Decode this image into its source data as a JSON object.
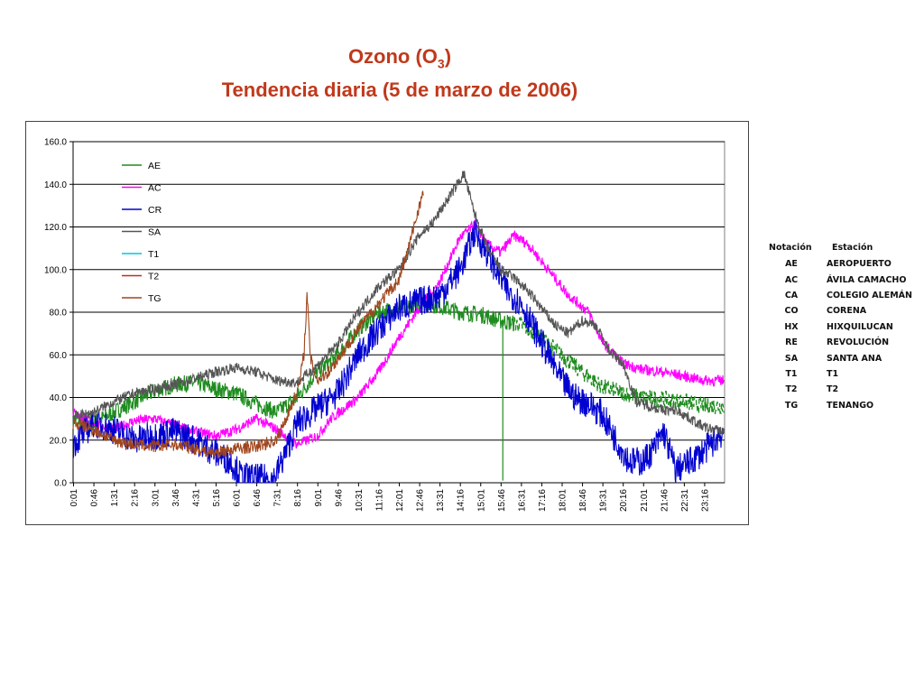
{
  "header": {
    "title_line1_main": "Ozono (O",
    "title_line1_sub": "3",
    "title_line1_end": ")",
    "title_line2": "Tendencia diaria (5 de marzo de 2006)"
  },
  "chart_data": {
    "type": "line",
    "title": "Ozono (O3) Tendencia diaria (5 de marzo de 2006)",
    "xlabel": "",
    "ylabel": "",
    "ylim": [
      0,
      160
    ],
    "yticks": [
      "0.0",
      "20.0",
      "40.0",
      "60.0",
      "80.0",
      "100.0",
      "120.0",
      "140.0",
      "160.0"
    ],
    "xticks": [
      "0:01",
      "0:46",
      "1:31",
      "2:16",
      "3:01",
      "3:46",
      "4:31",
      "5:16",
      "6:01",
      "6:46",
      "7:31",
      "8:16",
      "9:01",
      "9:46",
      "10:31",
      "11:16",
      "12:01",
      "12:46",
      "13:31",
      "14:16",
      "15:01",
      "15:46",
      "16:31",
      "17:16",
      "18:01",
      "18:46",
      "19:31",
      "20:16",
      "21:01",
      "21:46",
      "22:31",
      "23:16"
    ],
    "grid": true,
    "legend_position": "top-left",
    "series": [
      {
        "name": "AE",
        "color": "#1e8c1e",
        "style": "solid",
        "x": [
          0.0,
          0.75,
          1.5,
          2.25,
          3.0,
          3.75,
          4.5,
          5.25,
          6.0,
          6.75,
          7.5,
          8.25,
          9.0,
          9.75,
          10.5,
          11.25,
          12.0,
          12.75,
          13.5,
          14.25,
          15.0,
          15.75,
          16.5,
          17.25,
          18.0,
          18.75,
          19.5,
          20.25,
          21.0,
          21.75,
          22.5,
          23.25,
          23.98
        ],
        "y": [
          30,
          28,
          33,
          38,
          43,
          46,
          47,
          44,
          42,
          37,
          33,
          40,
          52,
          60,
          72,
          80,
          82,
          84,
          83,
          80,
          79,
          76,
          74,
          68,
          60,
          52,
          45,
          42,
          40,
          39,
          38,
          36,
          36
        ],
        "dashed_from_x": 16.3,
        "spike": {
          "x": 15.83,
          "y": 1
        }
      },
      {
        "name": "AC",
        "color": "#ff00ff",
        "style": "solid",
        "x": [
          0.0,
          0.75,
          1.5,
          2.25,
          3.0,
          3.75,
          4.5,
          5.25,
          6.0,
          6.75,
          7.5,
          8.25,
          9.0,
          9.5,
          10.0,
          10.5,
          11.25,
          12.0,
          12.75,
          13.5,
          14.25,
          14.8,
          15.25,
          15.75,
          16.25,
          16.75,
          17.5,
          18.25,
          19.0,
          19.5,
          20.25,
          21.0,
          21.75,
          22.5,
          23.25,
          23.98
        ],
        "y": [
          33,
          28,
          25,
          29,
          30,
          27,
          24,
          22,
          25,
          30,
          25,
          18,
          22,
          30,
          35,
          40,
          52,
          68,
          82,
          94,
          115,
          121,
          112,
          108,
          116,
          112,
          100,
          88,
          80,
          66,
          56,
          53,
          52,
          50,
          48,
          48
        ]
      },
      {
        "name": "CR",
        "color": "#0000d0",
        "style": "solid",
        "x": [
          0.0,
          0.75,
          1.5,
          2.25,
          3.0,
          3.75,
          4.5,
          5.25,
          5.8,
          6.2,
          6.8,
          7.4,
          7.7,
          8.25,
          9.0,
          9.75,
          10.5,
          11.25,
          12.0,
          12.75,
          13.5,
          14.25,
          14.8,
          15.5,
          16.0,
          16.5,
          17.0,
          17.5,
          18.0,
          18.5,
          19.0,
          19.5,
          20.0,
          20.5,
          21.0,
          21.4,
          21.75,
          22.2,
          22.75,
          23.25,
          23.98
        ],
        "y": [
          18,
          28,
          25,
          20,
          22,
          24,
          20,
          14,
          10,
          3,
          2,
          2,
          10,
          28,
          35,
          42,
          60,
          72,
          82,
          85,
          88,
          100,
          118,
          102,
          90,
          84,
          72,
          60,
          48,
          40,
          37,
          32,
          20,
          10,
          10,
          16,
          24,
          6,
          10,
          15,
          24
        ]
      },
      {
        "name": "SA",
        "color": "#555555",
        "style": "solid",
        "x": [
          0.0,
          0.75,
          1.5,
          2.25,
          3.0,
          3.75,
          4.5,
          5.25,
          6.0,
          6.75,
          7.5,
          8.25,
          9.0,
          9.75,
          10.5,
          11.25,
          12.0,
          12.75,
          13.25,
          13.75,
          14.25,
          14.4,
          14.75,
          15.25,
          15.75,
          16.25,
          16.75,
          17.25,
          17.75,
          18.25,
          18.75,
          19.25,
          19.75,
          20.25,
          20.75,
          21.25,
          21.75,
          22.25,
          22.75,
          23.25,
          23.98
        ],
        "y": [
          31,
          33,
          38,
          42,
          44,
          46,
          49,
          52,
          54,
          52,
          48,
          47,
          55,
          65,
          80,
          92,
          100,
          116,
          122,
          132,
          142,
          145,
          128,
          110,
          100,
          96,
          90,
          82,
          74,
          70,
          76,
          74,
          62,
          56,
          38,
          36,
          34,
          34,
          30,
          26,
          24
        ]
      },
      {
        "name": "T1",
        "color": "#00c8d8",
        "style": "solid",
        "x": [],
        "y": []
      },
      {
        "name": "T2",
        "color": "#c8281e",
        "style": "solid",
        "x": [],
        "y": []
      },
      {
        "name": "TG",
        "color": "#a0461e",
        "style": "solid",
        "x": [
          0.0,
          0.75,
          1.5,
          2.25,
          3.0,
          3.75,
          4.5,
          5.25,
          6.0,
          6.75,
          7.5,
          8.0,
          8.3,
          8.5,
          8.62,
          8.75,
          9.0,
          9.4,
          9.75,
          10.5,
          11.25,
          12.0,
          12.4,
          12.75,
          12.9
        ],
        "y": [
          28,
          25,
          20,
          18,
          17,
          18,
          16,
          14,
          16,
          17,
          20,
          35,
          44,
          60,
          88,
          58,
          48,
          52,
          58,
          72,
          84,
          95,
          112,
          130,
          136
        ]
      }
    ]
  },
  "notation_table": {
    "header": {
      "code": "Notación",
      "name": "Estación"
    },
    "rows": [
      {
        "code": "AE",
        "name": "AEROPUERTO"
      },
      {
        "code": "AC",
        "name": "ÁVILA CAMACHO"
      },
      {
        "code": "CA",
        "name": "COLEGIO ALEMÁN"
      },
      {
        "code": "CO",
        "name": "CORENA"
      },
      {
        "code": "HX",
        "name": "HIXQUILUCAN"
      },
      {
        "code": "RE",
        "name": "REVOLUCIÓN"
      },
      {
        "code": "SA",
        "name": "SANTA ANA"
      },
      {
        "code": "T1",
        "name": "T1"
      },
      {
        "code": "T2",
        "name": "T2"
      },
      {
        "code": "TG",
        "name": "TENANGO"
      }
    ]
  }
}
